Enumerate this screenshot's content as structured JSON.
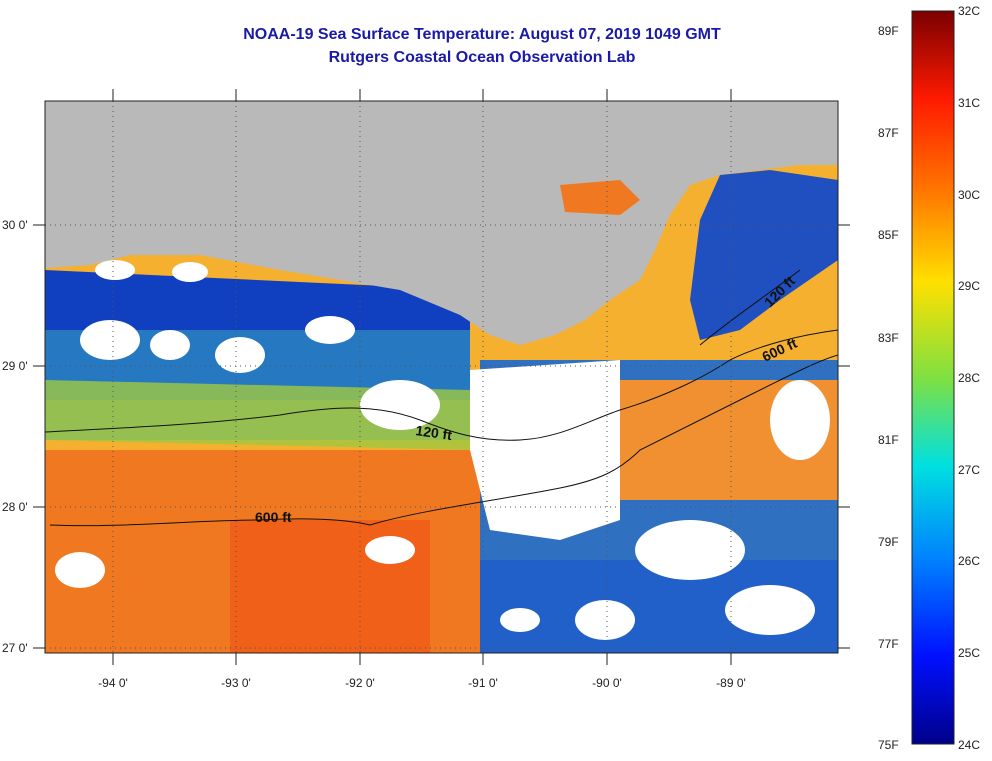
{
  "title": "NOAA-19 Sea Surface Temperature:  August 07, 2019 1049 GMT",
  "subtitle": "Rutgers Coastal Ocean Observation Lab",
  "map": {
    "lon_labels": [
      "-94 0'",
      "-93 0'",
      "-92 0'",
      "-91 0'",
      "-90 0'",
      "-89 0'"
    ],
    "lat_labels": [
      "30 0'",
      "29 0'",
      "28 0'",
      "27 0'"
    ],
    "contours": [
      {
        "label": "120 ft"
      },
      {
        "label": "600 ft"
      },
      {
        "label": "120 ft"
      },
      {
        "label": "600 ft"
      }
    ],
    "colors": {
      "land": "#b9b9b9",
      "cloud": "#ffffff",
      "warm": "#f07820",
      "mid": "#f5c030",
      "cool": "#1030c8",
      "teal": "#30c8a0"
    }
  },
  "colorbar": {
    "celsius_labels": [
      "32C",
      "31C",
      "30C",
      "29C",
      "28C",
      "27C",
      "26C",
      "25C",
      "24C"
    ],
    "fahrenheit_labels": [
      "89F",
      "87F",
      "85F",
      "83F",
      "81F",
      "79F",
      "77F",
      "75F"
    ]
  }
}
